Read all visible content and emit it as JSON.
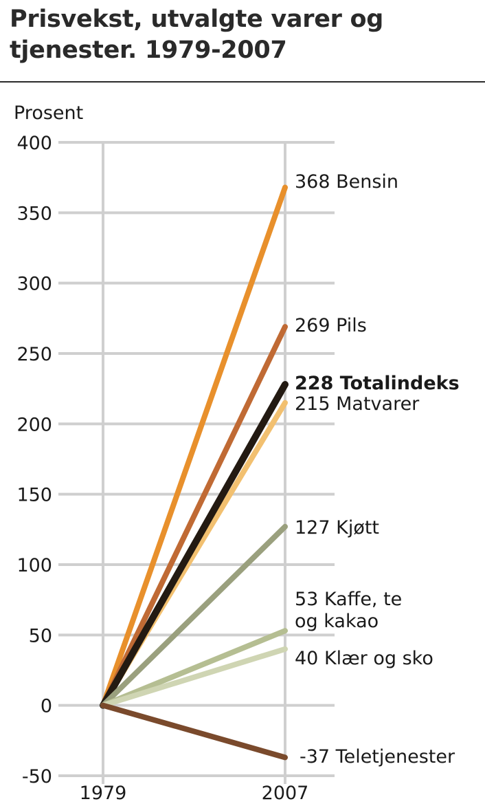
{
  "chart_data": {
    "type": "line",
    "title": "Prisvekst, utvalgte varer og tjenester. 1979-2007",
    "title_lines": [
      "Prisvekst, utvalgte varer og",
      "tjenester. 1979-2007"
    ],
    "ylabel": "Prosent",
    "ylim": [
      -50,
      400
    ],
    "y_ticks": [
      "400",
      "350",
      "300",
      "250",
      "200",
      "150",
      "100",
      "50",
      "0",
      "-50"
    ],
    "y_tick_values": [
      400,
      350,
      300,
      250,
      200,
      150,
      100,
      50,
      0,
      -50
    ],
    "x": [
      "1979",
      "2007"
    ],
    "grid": true,
    "series": [
      {
        "name": "Bensin",
        "values": [
          0,
          368
        ],
        "color": "#e8902c",
        "label_lines": [
          "368 Bensin"
        ]
      },
      {
        "name": "Pils",
        "values": [
          0,
          269
        ],
        "color": "#c06a34",
        "label_lines": [
          "269 Pils"
        ]
      },
      {
        "name": "Matvarer",
        "values": [
          0,
          215
        ],
        "color": "#f2c070",
        "label_lines": [
          "215 Matvarer"
        ]
      },
      {
        "name": "Totalindeks",
        "values": [
          0,
          228
        ],
        "color": "#231a12",
        "bold": true,
        "label_lines": [
          "228 Totalindeks"
        ]
      },
      {
        "name": "Kjøtt",
        "values": [
          0,
          127
        ],
        "color": "#9aa07e",
        "label_lines": [
          "127 Kjøtt"
        ]
      },
      {
        "name": "Kaffe, te og kakao",
        "values": [
          0,
          53
        ],
        "color": "#b5be92",
        "label_lines": [
          "53 Kaffe, te",
          "og kakao"
        ]
      },
      {
        "name": "Klær og sko",
        "values": [
          0,
          40
        ],
        "color": "#cfd5b3",
        "label_lines": [
          "40 Klær og sko"
        ]
      },
      {
        "name": "Teletjenester",
        "values": [
          0,
          -37
        ],
        "color": "#7a4a2c",
        "label_lines": [
          "-37 Teletjenester"
        ]
      }
    ]
  }
}
